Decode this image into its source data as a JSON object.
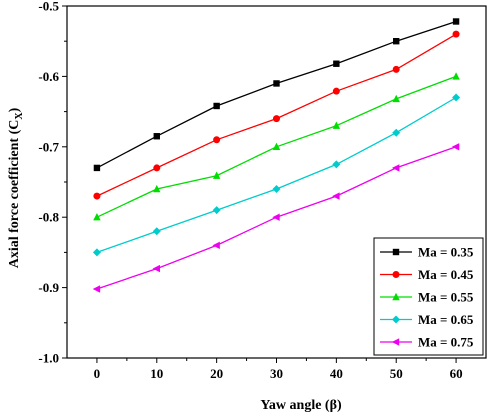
{
  "chart_data": {
    "type": "line",
    "title": "",
    "xlabel": "Yaw angle (β)",
    "ylabel": "Axial force coefficient (C",
    "ylabel_sub": "X",
    "ylabel_close": ")",
    "x": [
      0,
      10,
      20,
      30,
      40,
      50,
      60
    ],
    "xlim": [
      -5,
      65
    ],
    "ylim": [
      -1.0,
      -0.5
    ],
    "x_ticks": [
      "0",
      "10",
      "20",
      "30",
      "40",
      "50",
      "60"
    ],
    "y_ticks": [
      "-1.0",
      "-0.9",
      "-0.8",
      "-0.7",
      "-0.6",
      "-0.5"
    ],
    "y_tick_values": [
      -1.0,
      -0.9,
      -0.8,
      -0.7,
      -0.6,
      -0.5
    ],
    "grid": false,
    "legend_position": "bottom-right",
    "series": [
      {
        "name": "Ma = 0.35",
        "color": "#000000",
        "marker": "square",
        "values": [
          -0.73,
          -0.685,
          -0.642,
          -0.61,
          -0.582,
          -0.55,
          -0.522
        ]
      },
      {
        "name": "Ma = 0.45",
        "color": "#ff0000",
        "marker": "circle",
        "values": [
          -0.77,
          -0.73,
          -0.69,
          -0.66,
          -0.621,
          -0.59,
          -0.54
        ]
      },
      {
        "name": "Ma = 0.55",
        "color": "#00dd00",
        "marker": "triangle-up",
        "values": [
          -0.8,
          -0.76,
          -0.741,
          -0.7,
          -0.67,
          -0.632,
          -0.6
        ]
      },
      {
        "name": "Ma = 0.65",
        "color": "#00cccc",
        "marker": "diamond",
        "values": [
          -0.85,
          -0.82,
          -0.79,
          -0.76,
          -0.725,
          -0.68,
          -0.63
        ]
      },
      {
        "name": "Ma = 0.75",
        "color": "#ee00ee",
        "marker": "triangle-left",
        "values": [
          -0.902,
          -0.873,
          -0.84,
          -0.8,
          -0.77,
          -0.73,
          -0.7
        ]
      }
    ]
  }
}
